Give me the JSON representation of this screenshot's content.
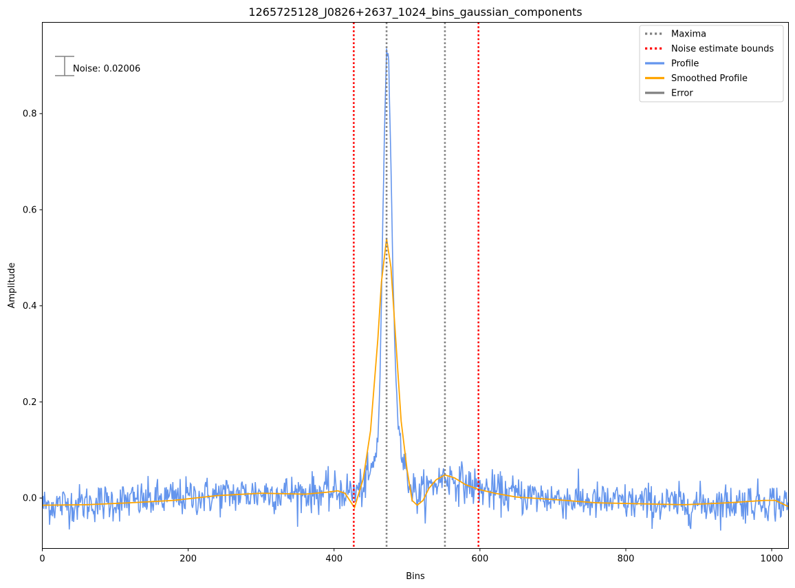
{
  "chart_data": {
    "type": "line",
    "title": "1265725128_J0826+2637_1024_bins_gaussian_components",
    "xlabel": "Bins",
    "ylabel": "Amplitude",
    "xlim": [
      0,
      1023
    ],
    "ylim": [
      -0.105,
      0.99
    ],
    "x_ticks": [
      0,
      200,
      400,
      600,
      800,
      1000
    ],
    "y_ticks": [
      0.0,
      0.2,
      0.4,
      0.6,
      0.8
    ],
    "x_tick_labels": [
      "0",
      "200",
      "400",
      "600",
      "800",
      "1000"
    ],
    "y_tick_labels": [
      "0.0",
      "0.2",
      "0.4",
      "0.6",
      "0.8"
    ],
    "grid": false,
    "legend_position": "top-right",
    "legend": [
      {
        "label": "Maxima",
        "style": "dotted",
        "color": "#808080"
      },
      {
        "label": "Noise estimate bounds",
        "style": "dotted",
        "color": "#ff0000"
      },
      {
        "label": "Profile",
        "style": "solid",
        "color": "#6495ed"
      },
      {
        "label": "Smoothed Profile",
        "style": "solid",
        "color": "#ffa500"
      },
      {
        "label": "Error",
        "style": "solid",
        "color": "#808080"
      }
    ],
    "maxima": [
      472,
      552
    ],
    "noise_bounds": [
      427,
      598
    ],
    "noise_value": 0.02006,
    "noise_annotation": "Noise: 0.02006",
    "series": [
      {
        "name": "Smoothed Profile",
        "color": "#ffa500",
        "x": [
          0,
          60,
          120,
          180,
          240,
          300,
          360,
          390,
          405,
          415,
          428,
          440,
          450,
          460,
          465,
          472,
          478,
          485,
          492,
          500,
          507,
          514,
          522,
          530,
          540,
          552,
          565,
          580,
          598,
          620,
          650,
          700,
          760,
          820,
          880,
          940,
          990,
          1005,
          1023
        ],
        "values": [
          -0.015,
          -0.014,
          -0.01,
          -0.005,
          0.005,
          0.01,
          0.008,
          0.012,
          0.015,
          0.01,
          -0.02,
          0.04,
          0.14,
          0.33,
          0.45,
          0.54,
          0.48,
          0.32,
          0.16,
          0.06,
          -0.005,
          -0.015,
          -0.005,
          0.02,
          0.038,
          0.048,
          0.042,
          0.028,
          0.018,
          0.01,
          0.002,
          -0.003,
          -0.01,
          -0.012,
          -0.014,
          -0.01,
          -0.005,
          -0.005,
          -0.018
        ]
      },
      {
        "name": "Profile",
        "color": "#6495ed",
        "x": [
          0,
          50,
          100,
          150,
          200,
          250,
          300,
          350,
          400,
          420,
          430,
          440,
          448,
          455,
          460,
          463,
          466,
          469,
          472,
          475,
          478,
          481,
          484,
          488,
          492,
          496,
          500,
          505,
          515,
          530,
          552,
          570,
          598,
          620,
          660,
          700,
          760,
          820,
          880,
          940,
          1000,
          1023
        ],
        "values": [
          -0.015,
          -0.012,
          -0.008,
          -0.004,
          0.002,
          0.006,
          0.01,
          0.01,
          0.012,
          0.015,
          0.01,
          0.025,
          0.045,
          0.07,
          0.12,
          0.25,
          0.5,
          0.75,
          0.94,
          0.9,
          0.7,
          0.45,
          0.28,
          0.16,
          0.1,
          0.07,
          0.05,
          0.025,
          0.005,
          0.02,
          0.045,
          0.035,
          0.02,
          0.012,
          0.005,
          0.0,
          -0.008,
          -0.01,
          -0.014,
          -0.01,
          -0.006,
          -0.015
        ],
        "noise_sigma": 0.02006
      }
    ]
  }
}
